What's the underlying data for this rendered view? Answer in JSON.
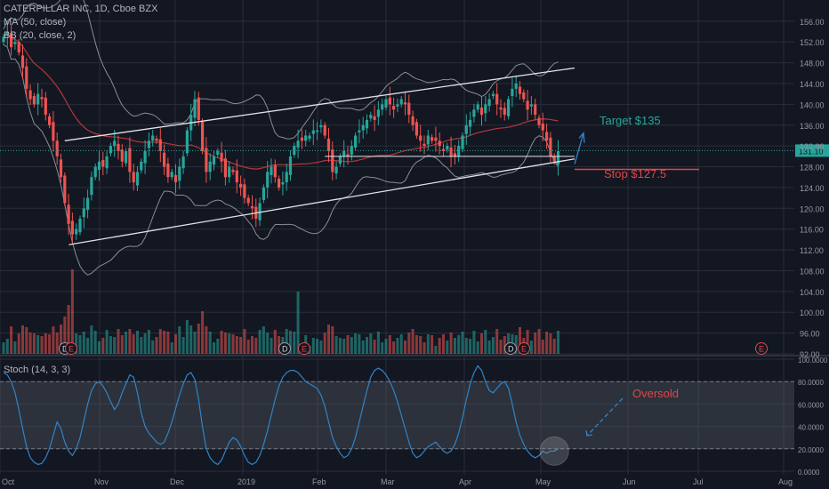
{
  "header": {
    "symbol_line": "CATERPILLAR INC, 1D, Cboe BZX",
    "ma_label": "MA (50, close)",
    "bb_label": "BB (20, close, 2)"
  },
  "colors": {
    "background": "#131722",
    "up": "#26a69a",
    "down": "#ef5350",
    "ma": "#b2383a",
    "bb": "#8a8d94",
    "channel": "#e0e3eb",
    "stoch": "#2f84c9",
    "target": "#26a69a",
    "stop": "#e0464a"
  },
  "chart_data": [
    {
      "type": "candlestick",
      "title": "CATERPILLAR INC, 1D, Cboe BZX",
      "x_labels": [
        "Oct",
        "Nov",
        "Dec",
        "2019",
        "Feb",
        "Mar",
        "Apr",
        "May",
        "Jun",
        "Jul",
        "Aug"
      ],
      "y_ticks": [
        92,
        96,
        100,
        104,
        108,
        112,
        116,
        120,
        124,
        128,
        132,
        136,
        140,
        144,
        148,
        152,
        156
      ],
      "ylim": [
        92,
        157
      ],
      "grid": true,
      "last_price": 131.1,
      "stop_level": 127.5,
      "annotations": [
        "Target $135",
        "Stop $127.5"
      ],
      "event_markers": [
        {
          "letter": "D",
          "month": "Oct"
        },
        {
          "letter": "E",
          "month": "Oct"
        },
        {
          "letter": "D",
          "month": "Jan"
        },
        {
          "letter": "E",
          "month": "Jan"
        },
        {
          "letter": "D",
          "month": "Apr"
        },
        {
          "letter": "E",
          "month": "Apr"
        },
        {
          "letter": "E",
          "month": "Jul"
        }
      ],
      "closes": [
        153,
        154,
        151,
        152,
        150,
        147,
        143,
        141,
        140,
        142,
        141,
        138,
        136,
        133,
        130,
        126,
        121,
        117,
        115,
        116,
        118,
        120,
        122,
        126,
        128,
        129,
        128,
        130,
        132,
        133,
        131,
        129,
        131,
        127,
        125,
        127,
        129,
        131,
        133,
        134,
        133,
        131,
        128,
        126,
        127,
        125,
        128,
        130,
        135,
        138,
        141,
        137,
        131,
        127,
        129,
        130,
        131,
        129,
        126,
        128,
        127,
        125,
        124,
        122,
        121,
        120,
        118,
        121,
        124,
        127,
        128,
        126,
        124,
        125,
        127,
        130,
        132,
        133,
        133,
        134,
        134,
        135,
        135,
        136,
        134,
        131,
        127,
        128,
        130,
        131,
        130,
        132,
        134,
        135,
        136,
        137,
        138,
        137,
        139,
        140,
        141,
        140,
        139,
        140,
        141,
        140,
        138,
        136,
        134,
        133,
        132,
        134,
        133,
        133,
        132,
        131,
        132,
        130,
        130,
        132,
        134,
        136,
        137,
        139,
        140,
        138,
        140,
        141,
        142,
        140,
        139,
        138,
        141,
        143,
        144,
        142,
        141,
        139,
        140,
        138,
        136,
        135,
        133,
        130,
        129,
        131
      ],
      "volume_series": {
        "name": "Volume"
      }
    },
    {
      "type": "line",
      "title": "Stoch (14, 3, 3)",
      "y_ticks": [
        0,
        20,
        40,
        60,
        80,
        100
      ],
      "y_tick_labels": [
        "0.0000",
        "20.0000",
        "40.0000",
        "60.0000",
        "80.0000",
        "100.0000"
      ],
      "ylim": [
        0,
        100
      ],
      "shaded_band": [
        20,
        80
      ],
      "annotation": "Oversold",
      "series": [
        {
          "values": [
            88,
            86,
            80,
            70,
            55,
            38,
            22,
            12,
            8,
            6,
            7,
            12,
            20,
            32,
            44,
            38,
            26,
            18,
            14,
            20,
            30,
            45,
            60,
            72,
            78,
            80,
            76,
            70,
            62,
            55,
            60,
            70,
            78,
            86,
            84,
            70,
            52,
            40,
            34,
            30,
            26,
            24,
            26,
            34,
            44,
            56,
            68,
            78,
            86,
            88,
            82,
            64,
            40,
            20,
            12,
            8,
            6,
            10,
            18,
            26,
            30,
            28,
            22,
            14,
            8,
            6,
            8,
            14,
            24,
            36,
            50,
            64,
            76,
            84,
            88,
            90,
            90,
            88,
            84,
            80,
            78,
            76,
            74,
            68,
            58,
            44,
            30,
            22,
            16,
            12,
            14,
            20,
            30,
            44,
            58,
            72,
            84,
            90,
            92,
            90,
            86,
            80,
            72,
            62,
            50,
            38,
            26,
            16,
            12,
            14,
            18,
            22,
            24,
            26,
            22,
            18,
            16,
            18,
            24,
            34,
            48,
            64,
            78,
            88,
            94,
            90,
            80,
            72,
            70,
            74,
            78,
            80,
            74,
            60,
            44,
            32,
            24,
            18,
            14,
            12,
            14,
            18,
            16,
            18,
            18,
            20
          ]
        }
      ]
    }
  ]
}
